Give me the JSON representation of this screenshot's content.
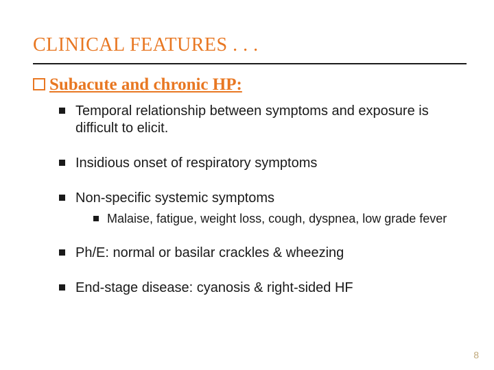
{
  "colors": {
    "accent": "#e87722",
    "text": "#1a1a1a",
    "pagenum": "#bfa87a",
    "background": "#ffffff",
    "rule": "#1a1a1a"
  },
  "title": "CLINICAL FEATURES . . .",
  "heading": "Subacute and chronic HP:",
  "bullets": [
    {
      "text": "Temporal relationship between symptoms and exposure is difficult to elicit."
    },
    {
      "text": "Insidious onset of respiratory symptoms"
    },
    {
      "text": "Non-specific systemic symptoms",
      "sub": [
        "Malaise, fatigue, weight loss, cough, dyspnea, low grade fever"
      ]
    },
    {
      "text": "Ph/E: normal or basilar crackles & wheezing"
    },
    {
      "text": "End-stage disease: cyanosis & right-sided HF"
    }
  ],
  "page_number": "8"
}
